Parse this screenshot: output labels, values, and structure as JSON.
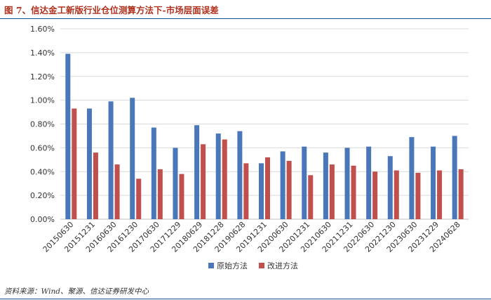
{
  "figure": {
    "title": "图 7、信达金工新版行业仓位测算方法下-市场层面误差",
    "source": "资料来源：Wind、聚源、信达证券研发中心"
  },
  "chart_data": {
    "type": "bar",
    "title": "",
    "xlabel": "",
    "ylabel": "",
    "ylim": [
      0,
      0.016
    ],
    "yticks": [
      "0.00%",
      "0.20%",
      "0.40%",
      "0.60%",
      "0.80%",
      "1.00%",
      "1.20%",
      "1.40%",
      "1.60%"
    ],
    "categories": [
      "20150630",
      "20151231",
      "20160630",
      "20161230",
      "20170630",
      "20171229",
      "20180629",
      "20181228",
      "20190628",
      "20191231",
      "20200630",
      "20201231",
      "20210630",
      "20211231",
      "20220630",
      "20221230",
      "20230630",
      "20231229",
      "20240628"
    ],
    "series": [
      {
        "name": "原始方法",
        "color": "#4a76ba",
        "values": [
          0.0139,
          0.0093,
          0.0099,
          0.0102,
          0.0077,
          0.006,
          0.0079,
          0.0072,
          0.0074,
          0.0047,
          0.0057,
          0.0061,
          0.0056,
          0.006,
          0.0061,
          0.0053,
          0.0069,
          0.0061,
          0.007
        ]
      },
      {
        "name": "改进方法",
        "color": "#c0504d",
        "values": [
          0.0093,
          0.0056,
          0.0046,
          0.0034,
          0.0042,
          0.0038,
          0.0063,
          0.0067,
          0.0047,
          0.0052,
          0.0049,
          0.0037,
          0.0046,
          0.0045,
          0.004,
          0.0041,
          0.0039,
          0.0041,
          0.0042
        ]
      }
    ],
    "grid": true,
    "legend": "bottom-center"
  }
}
